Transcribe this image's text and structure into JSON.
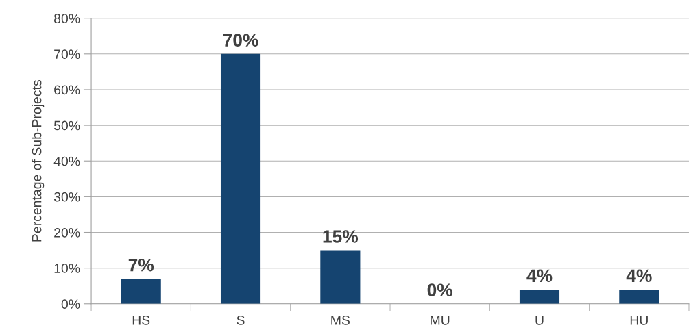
{
  "chart_data": {
    "type": "bar",
    "ylabel": "Percentage of Sub-Projects",
    "categories": [
      "HS",
      "S",
      "MS",
      "MU",
      "U",
      "HU"
    ],
    "values": [
      7,
      70,
      15,
      0,
      4,
      4
    ],
    "value_labels": [
      "7%",
      "70%",
      "15%",
      "0%",
      "4%",
      "4%"
    ],
    "color": "#154470",
    "ylim": [
      0,
      80
    ],
    "yticks": [
      {
        "value": 0,
        "label": "0%"
      },
      {
        "value": 10,
        "label": "10%"
      },
      {
        "value": 20,
        "label": "20%"
      },
      {
        "value": 30,
        "label": "30%"
      },
      {
        "value": 40,
        "label": "40%"
      },
      {
        "value": 50,
        "label": "50%"
      },
      {
        "value": 60,
        "label": "60%"
      },
      {
        "value": 70,
        "label": "70%"
      },
      {
        "value": 80,
        "label": "80%"
      }
    ],
    "grid": "y"
  }
}
